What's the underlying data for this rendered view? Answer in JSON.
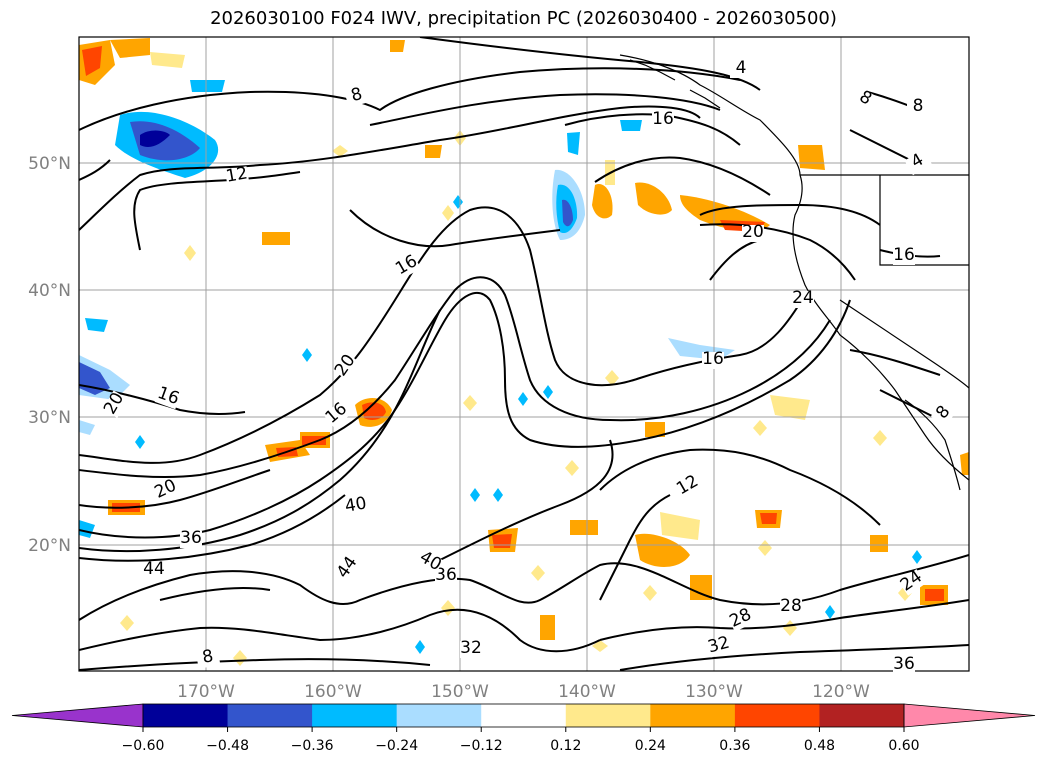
{
  "title": "2026030100 F024 IWV, precipitation PC (2026030400 - 2026030500)",
  "latitude_labels": [
    "50°N",
    "40°N",
    "30°N",
    "20°N"
  ],
  "longitude_labels": [
    "170°W",
    "160°W",
    "150°W",
    "140°W",
    "130°W",
    "120°W"
  ],
  "colorbar": {
    "tick_labels": [
      "−0.60",
      "−0.48",
      "−0.36",
      "−0.24",
      "−0.12",
      "0.12",
      "0.24",
      "0.36",
      "0.48",
      "0.60"
    ],
    "colors": [
      "#9933cc",
      "#000099",
      "#3355cc",
      "#00bbff",
      "#aaddff",
      "#ffffff",
      "#ffe98c",
      "#ffa500",
      "#ff4500",
      "#b22222",
      "#ff88aa"
    ]
  },
  "contour_labels": [
    "4",
    "8",
    "8",
    "8",
    "4",
    "12",
    "16",
    "16",
    "16",
    "16",
    "16",
    "16",
    "20",
    "20",
    "20",
    "20",
    "12",
    "24",
    "24",
    "28",
    "28",
    "32",
    "32",
    "36",
    "36",
    "36",
    "40",
    "40",
    "44",
    "44",
    "8",
    "8"
  ],
  "colors": {
    "contour": "#000000",
    "grid": "#a0a0a0",
    "coastline": "#000000"
  }
}
